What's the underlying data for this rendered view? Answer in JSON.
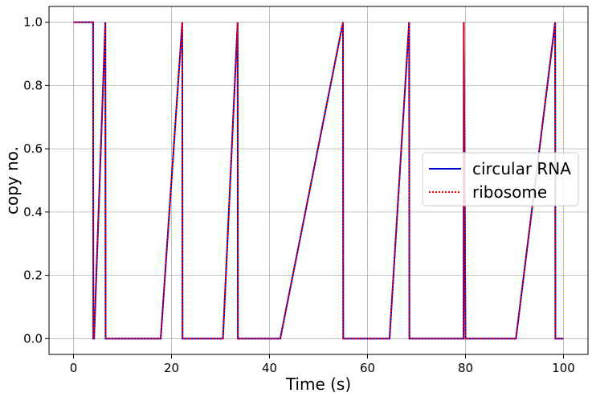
{
  "chart_data": {
    "type": "line",
    "xlabel": "Time (s)",
    "ylabel": "copy no.",
    "xlim": [
      -5,
      105
    ],
    "ylim": [
      -0.05,
      1.05
    ],
    "xticks": [
      0,
      20,
      40,
      60,
      80,
      100
    ],
    "xtick_labels": [
      "0",
      "20",
      "40",
      "60",
      "80",
      "100"
    ],
    "yticks": [
      0.0,
      0.2,
      0.4,
      0.6,
      0.8,
      1.0
    ],
    "ytick_labels": [
      "0.0",
      "0.2",
      "0.4",
      "0.6",
      "0.8",
      "1.0"
    ],
    "grid": true,
    "legend_position": "center-right",
    "series": [
      {
        "name": "circular RNA",
        "color": "#0000cc",
        "style": "solid",
        "x": [
          0,
          4.0,
          4.05,
          4.2,
          6.5,
          6.55,
          17.8,
          22.2,
          22.25,
          30.5,
          33.5,
          33.55,
          42.2,
          55.0,
          55.05,
          64.5,
          68.5,
          68.55,
          79.6,
          79.65,
          80.0,
          90.3,
          98.3,
          98.35,
          100
        ],
        "y": [
          1,
          1,
          0,
          0,
          1,
          0,
          0,
          1,
          0,
          0,
          1,
          0,
          0,
          1,
          0,
          0,
          1,
          0,
          0,
          1,
          0,
          0,
          1,
          0,
          0
        ]
      },
      {
        "name": "ribosome",
        "color": "#ff0000",
        "style": "dotted",
        "x": [
          0,
          4.0,
          4.05,
          4.2,
          6.5,
          6.55,
          17.8,
          22.2,
          22.25,
          30.5,
          33.5,
          33.55,
          42.2,
          55.0,
          55.05,
          64.5,
          68.5,
          68.55,
          79.6,
          79.65,
          80.0,
          90.3,
          98.3,
          98.35,
          100
        ],
        "y": [
          1,
          1,
          0,
          0,
          1,
          0,
          0,
          1,
          0,
          0,
          1,
          0,
          0,
          1,
          0,
          0,
          1,
          0,
          0,
          1,
          0,
          0,
          1,
          0,
          0
        ]
      }
    ]
  }
}
